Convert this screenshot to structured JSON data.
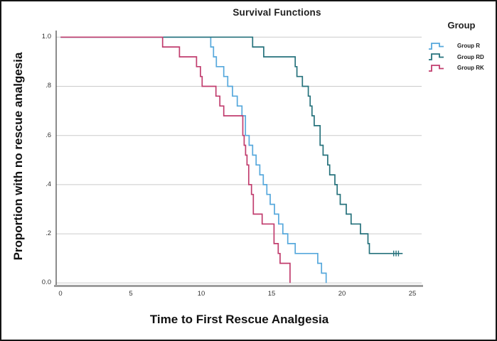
{
  "figure": {
    "title": "Survival Functions"
  },
  "axes": {
    "x": {
      "title": "Time to First Rescue Analgesia",
      "ticks": [
        "0",
        "5",
        "10",
        "15",
        "20",
        "25"
      ]
    },
    "y": {
      "title": "Proportion with no rescue analgesia",
      "ticks": [
        "1.0",
        ".8",
        ".6",
        ".4",
        ".2",
        "0.0"
      ]
    }
  },
  "legend": {
    "title": "Group",
    "items": [
      {
        "label": "Group R",
        "color": "#56A8DC"
      },
      {
        "label": "Group RD",
        "color": "#26727C"
      },
      {
        "label": "Group RK",
        "color": "#C13D6E"
      }
    ]
  },
  "chart_data": {
    "type": "line",
    "subtype": "kaplan-meier-step-survival",
    "title": "Survival Functions",
    "xlabel": "Time to First Rescue Analgesia",
    "ylabel": "Proportion with no rescue analgesia",
    "xlim": [
      0,
      25
    ],
    "ylim": [
      0.0,
      1.0
    ],
    "x_tick_values": [
      0,
      5,
      10,
      15,
      20,
      25
    ],
    "y_tick_values": [
      1.0,
      0.8,
      0.6,
      0.4,
      0.2,
      0.0
    ],
    "grid": "horizontal-only",
    "legend_position": "right",
    "colors": {
      "axis_line": "#3F3F3F",
      "baseline": "#9E9E9E",
      "gridline": "#CBCBCB"
    },
    "series": [
      {
        "name": "Group R",
        "color": "#56A8DC",
        "end_x": 18.88,
        "steps": [
          [
            0,
            1.0
          ],
          [
            10.67,
            0.96
          ],
          [
            10.87,
            0.92
          ],
          [
            11.07,
            0.88
          ],
          [
            11.6,
            0.84
          ],
          [
            11.88,
            0.8
          ],
          [
            12.22,
            0.76
          ],
          [
            12.56,
            0.72
          ],
          [
            12.89,
            0.68
          ],
          [
            13.14,
            0.6
          ],
          [
            13.4,
            0.56
          ],
          [
            13.65,
            0.52
          ],
          [
            13.9,
            0.48
          ],
          [
            14.16,
            0.44
          ],
          [
            14.41,
            0.4
          ],
          [
            14.66,
            0.36
          ],
          [
            14.9,
            0.32
          ],
          [
            15.2,
            0.28
          ],
          [
            15.5,
            0.24
          ],
          [
            15.8,
            0.2
          ],
          [
            16.15,
            0.16
          ],
          [
            16.68,
            0.12
          ],
          [
            18.28,
            0.08
          ],
          [
            18.55,
            0.04
          ],
          [
            18.88,
            0.0
          ]
        ]
      },
      {
        "name": "Group RD",
        "color": "#26727C",
        "end_x": 24.32,
        "censored_y": 0.12,
        "censored_x": [
          23.68,
          23.85,
          24.02
        ],
        "steps": [
          [
            0,
            1.0
          ],
          [
            13.65,
            0.96
          ],
          [
            14.44,
            0.92
          ],
          [
            16.68,
            0.88
          ],
          [
            16.8,
            0.84
          ],
          [
            17.19,
            0.8
          ],
          [
            17.61,
            0.76
          ],
          [
            17.74,
            0.72
          ],
          [
            17.87,
            0.68
          ],
          [
            18.03,
            0.64
          ],
          [
            18.45,
            0.56
          ],
          [
            18.66,
            0.52
          ],
          [
            18.99,
            0.48
          ],
          [
            19.13,
            0.44
          ],
          [
            19.5,
            0.4
          ],
          [
            19.66,
            0.36
          ],
          [
            19.88,
            0.32
          ],
          [
            20.31,
            0.28
          ],
          [
            20.65,
            0.24
          ],
          [
            21.32,
            0.2
          ],
          [
            21.85,
            0.16
          ],
          [
            21.95,
            0.12
          ]
        ]
      },
      {
        "name": "Group RK",
        "color": "#C13D6E",
        "end_x": 16.31,
        "steps": [
          [
            0,
            1.0
          ],
          [
            7.25,
            0.96
          ],
          [
            8.45,
            0.92
          ],
          [
            9.66,
            0.88
          ],
          [
            9.94,
            0.84
          ],
          [
            10.06,
            0.8
          ],
          [
            11.04,
            0.76
          ],
          [
            11.32,
            0.72
          ],
          [
            11.6,
            0.68
          ],
          [
            12.95,
            0.6
          ],
          [
            13.05,
            0.56
          ],
          [
            13.15,
            0.52
          ],
          [
            13.25,
            0.48
          ],
          [
            13.37,
            0.4
          ],
          [
            13.57,
            0.36
          ],
          [
            13.7,
            0.28
          ],
          [
            14.33,
            0.24
          ],
          [
            15.17,
            0.16
          ],
          [
            15.47,
            0.12
          ],
          [
            15.6,
            0.08
          ],
          [
            16.31,
            0.0
          ]
        ]
      }
    ]
  }
}
